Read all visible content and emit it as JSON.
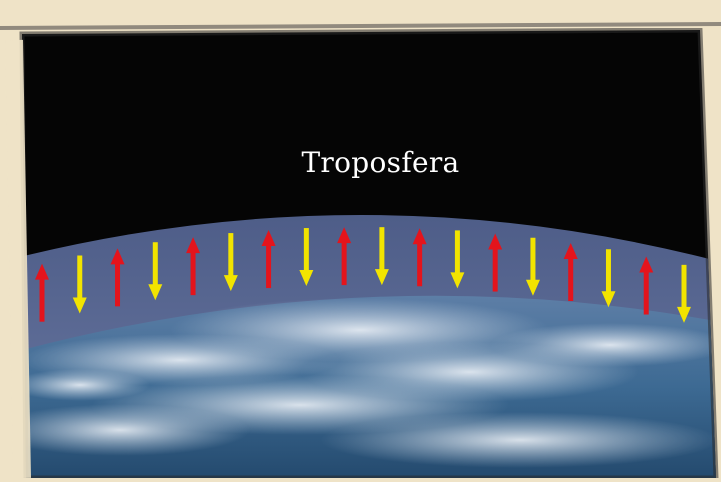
{
  "diagram": {
    "label": "Troposfera",
    "colors": {
      "paper": "#efe3c7",
      "space": "#050505",
      "atmosphere": "#5b6a94",
      "ocean": "#2f5f86",
      "clouds": "#dfe7f0",
      "up_arrow": "#e4141c",
      "down_arrow": "#f2e400"
    },
    "arrows": [
      {
        "direction": "up",
        "icon": "up-arrow-icon"
      },
      {
        "direction": "down",
        "icon": "down-arrow-icon"
      },
      {
        "direction": "up",
        "icon": "up-arrow-icon"
      },
      {
        "direction": "down",
        "icon": "down-arrow-icon"
      },
      {
        "direction": "up",
        "icon": "up-arrow-icon"
      },
      {
        "direction": "down",
        "icon": "down-arrow-icon"
      },
      {
        "direction": "up",
        "icon": "up-arrow-icon"
      },
      {
        "direction": "down",
        "icon": "down-arrow-icon"
      },
      {
        "direction": "up",
        "icon": "up-arrow-icon"
      },
      {
        "direction": "down",
        "icon": "down-arrow-icon"
      },
      {
        "direction": "up",
        "icon": "up-arrow-icon"
      },
      {
        "direction": "down",
        "icon": "down-arrow-icon"
      },
      {
        "direction": "up",
        "icon": "up-arrow-icon"
      },
      {
        "direction": "down",
        "icon": "down-arrow-icon"
      },
      {
        "direction": "up",
        "icon": "up-arrow-icon"
      },
      {
        "direction": "down",
        "icon": "down-arrow-icon"
      },
      {
        "direction": "up",
        "icon": "up-arrow-icon"
      },
      {
        "direction": "down",
        "icon": "down-arrow-icon"
      }
    ]
  }
}
